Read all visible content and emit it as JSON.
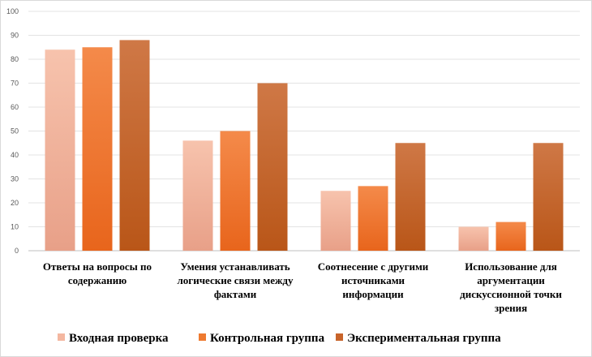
{
  "chart_data": {
    "type": "bar",
    "title": "",
    "xlabel": "",
    "ylabel": "",
    "ylim": [
      0,
      100
    ],
    "yticks": [
      0,
      10,
      20,
      30,
      40,
      50,
      60,
      70,
      80,
      90,
      100
    ],
    "grid": true,
    "legend_position": "bottom",
    "categories": [
      [
        "Ответы  на вопросы по",
        "содержанию"
      ],
      [
        "Умения устанавливать",
        "логические связи между",
        "фактами"
      ],
      [
        "Соотнесение с другими",
        "источниками",
        "информации"
      ],
      [
        "Использование для",
        "аргументации",
        "дискуссионной точки",
        "зрения"
      ]
    ],
    "series": [
      {
        "name": "Входная проверка",
        "values": [
          84,
          46,
          25,
          10
        ],
        "color_top": "#f7c3ad",
        "color_bottom": "#e8a088",
        "legend_color": "#f4b7a0"
      },
      {
        "name": "Контрольная группа",
        "values": [
          85,
          50,
          27,
          12
        ],
        "color_top": "#f48a4a",
        "color_bottom": "#e8651c",
        "legend_color": "#ee7a30"
      },
      {
        "name": "Экспериментальная группа",
        "values": [
          88,
          70,
          45,
          45
        ],
        "color_top": "#cf7846",
        "color_bottom": "#b95618",
        "legend_color": "#c8642a"
      }
    ]
  }
}
